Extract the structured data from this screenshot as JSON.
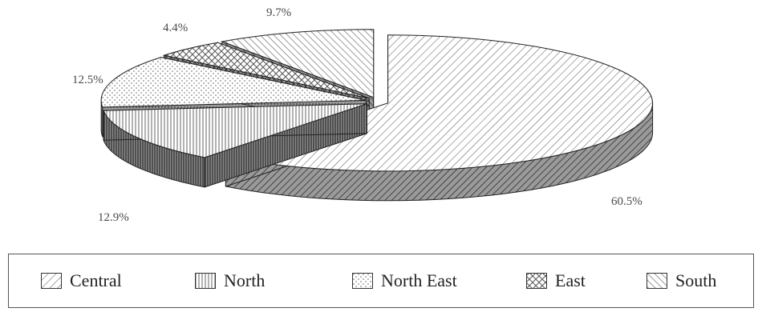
{
  "chart_data": {
    "type": "pie",
    "categories": [
      "Central",
      "North",
      "North East",
      "East",
      "South"
    ],
    "values": [
      60.5,
      12.9,
      12.5,
      4.4,
      9.7
    ],
    "labels": [
      "60.5%",
      "12.9%",
      "12.5%",
      "4.4%",
      "9.7%"
    ],
    "style": "3d exploded pie with hatched fills",
    "legend_position": "bottom"
  },
  "legend": {
    "items": [
      {
        "label": "Central",
        "pattern": "diag-right"
      },
      {
        "label": "North",
        "pattern": "vertical"
      },
      {
        "label": "North East",
        "pattern": "dots"
      },
      {
        "label": "East",
        "pattern": "crosshatch"
      },
      {
        "label": "South",
        "pattern": "diag-left"
      }
    ]
  }
}
